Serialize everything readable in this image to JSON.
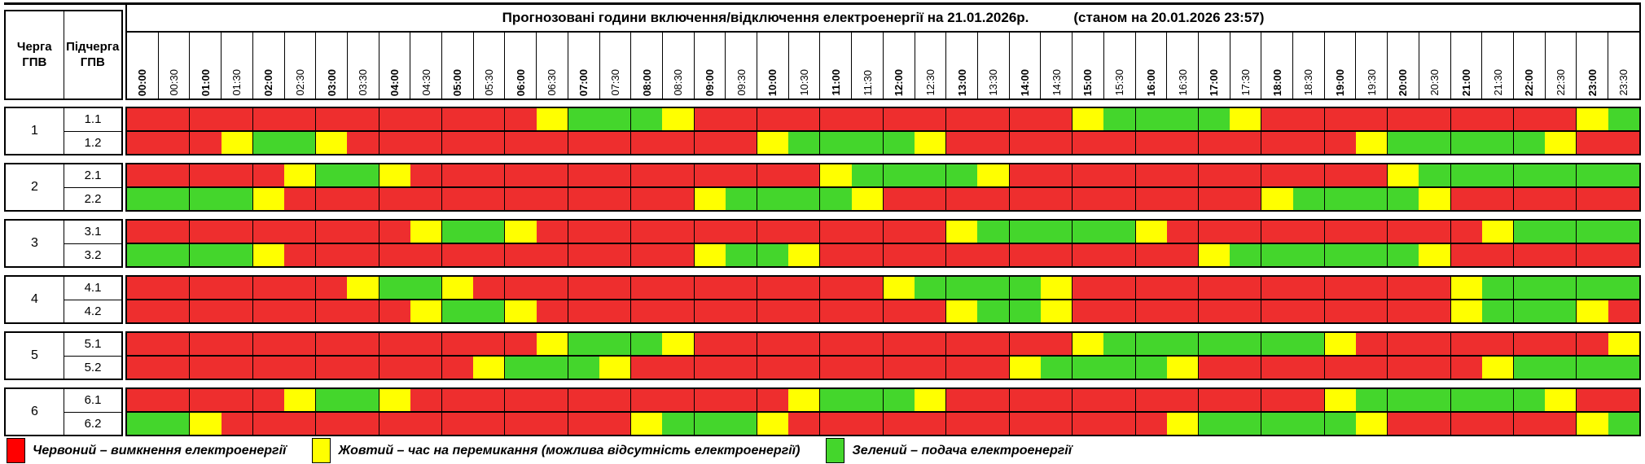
{
  "header": {
    "col1": "Черга ГПВ",
    "col2": "Підчерга ГПВ"
  },
  "chart_data": {
    "type": "heatmap",
    "title": "Прогнозовані години включення/відключення електроенергії на 21.01.2026р.",
    "as_of": "(станом на 20.01.2026 23:57)",
    "x_labels": [
      "00:00",
      "00:30",
      "01:00",
      "01:30",
      "02:00",
      "02:30",
      "03:00",
      "03:30",
      "04:00",
      "04:30",
      "05:00",
      "05:30",
      "06:00",
      "06:30",
      "07:00",
      "07:30",
      "08:00",
      "08:30",
      "09:00",
      "09:30",
      "10:00",
      "10:30",
      "11:00",
      "11:30",
      "12:00",
      "12:30",
      "13:00",
      "13:30",
      "14:00",
      "14:30",
      "15:00",
      "15:30",
      "16:00",
      "16:30",
      "17:00",
      "17:30",
      "18:00",
      "18:30",
      "19:00",
      "19:30",
      "20:00",
      "20:30",
      "21:00",
      "21:30",
      "22:00",
      "22:30",
      "23:00",
      "23:30"
    ],
    "palette": {
      "R": "#ee2e2e",
      "Y": "#ffff00",
      "G": "#44d62c"
    },
    "state_meaning": {
      "R": "вимкнення",
      "Y": "перемикання",
      "G": "подача"
    },
    "groups": [
      {
        "queue": "1",
        "rows": [
          {
            "label": "1.1",
            "cells": "RRRRRRRRRRRRRYGGGYRRRRRRRRRRRRYGGGGYRRRRRRRRRRYG"
          },
          {
            "label": "1.2",
            "cells": "RRRYGGYRRRRRRRRRRRRRYGGGGYRRRRRRRRRRRRRYGGGGGYRR"
          }
        ]
      },
      {
        "queue": "2",
        "rows": [
          {
            "label": "2.1",
            "cells": "RRRRRYGGYRRRRRRRRRRRRRYGGGGYRRRRRRRRRRRRYGGGGGGG"
          },
          {
            "label": "2.2",
            "cells": "GGGGYRRRRRRRRRRRRRYGGGGYRRRRRRRRRRRRYGGGGYRRRRRR"
          }
        ]
      },
      {
        "queue": "3",
        "rows": [
          {
            "label": "3.1",
            "cells": "RRRRRRRRRYGGYRRRRRRRRRRRRRYGGGGGYRRRRRRRRRRYGGGG"
          },
          {
            "label": "3.2",
            "cells": "GGGGYRRRRRRRRRRRRRYGGYRRRRRRRRRRRRYGGGGGGYRRRRRR"
          }
        ]
      },
      {
        "queue": "4",
        "rows": [
          {
            "label": "4.1",
            "cells": "RRRRRRRYGGYRRRRRRRRRRRRRYGGGGYRRRRRRRRRRRRYGGGGG"
          },
          {
            "label": "4.2",
            "cells": "RRRRRRRRRYGGYRRRRRRRRRRRRRYGGYRRRRRRRRRRRRYGGGYR"
          }
        ]
      },
      {
        "queue": "5",
        "rows": [
          {
            "label": "5.1",
            "cells": "RRRRRRRRRRRRRYGGGYRRRRRRRRRRRRYGGGGGGGYRRRRRRRRY"
          },
          {
            "label": "5.2",
            "cells": "RRRRRRRRRRRYGGGYRRRRRRRRRRRRYGGGGYRRRRRRRRRYGGGG"
          }
        ]
      },
      {
        "queue": "6",
        "rows": [
          {
            "label": "6.1",
            "cells": "RRRRRYGGYRRRRRRRRRRRRYGGGYRRRRRRRRRRRRYGGGGGGYRR"
          },
          {
            "label": "6.2",
            "cells": "GGYRRRRRRRRRRRRRYGGGYRRRRRRRRRRRRYGGGGGYRRRRRRYG"
          }
        ]
      }
    ]
  },
  "legend": {
    "items": [
      {
        "color": "#ff0000",
        "label": "Червоний – вимкнення електроенергії"
      },
      {
        "color": "#ffff00",
        "label": "Жовтий – час на перемикання (можлива відсутність електроенергії)"
      },
      {
        "color": "#44d62c",
        "label": "Зелений – подача електроенергії"
      }
    ]
  }
}
